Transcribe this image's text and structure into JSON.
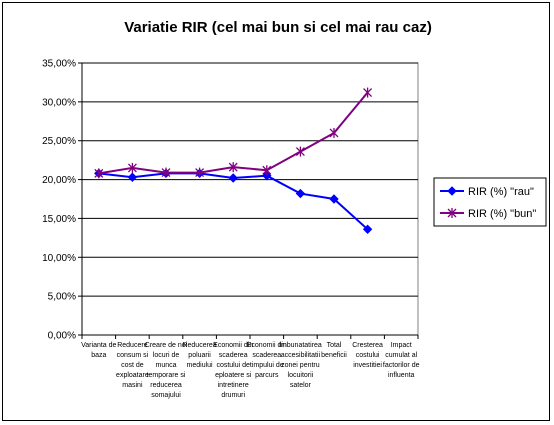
{
  "chart_data": {
    "type": "line",
    "title": "Variatie RIR (cel mai bun si cel mai rau caz)",
    "xlabel": "",
    "ylabel": "",
    "ylim": [
      0,
      35
    ],
    "ytick_labels": [
      "0,00%",
      "5,00%",
      "10,00%",
      "15,00%",
      "20,00%",
      "25,00%",
      "30,00%",
      "35,00%"
    ],
    "categories": [
      [
        "Varianta de",
        "baza"
      ],
      [
        "Reducere",
        "consum si",
        "cost de",
        "exploatare",
        "masini"
      ],
      [
        "Creare de noi",
        "locuri de",
        "munca",
        "temporare si",
        "reducerea",
        "somajului"
      ],
      [
        "Reducerea",
        "poluarii",
        "mediului"
      ],
      [
        "Economii din",
        "scaderea",
        "costului de",
        "eploatere si",
        "intretinere",
        "drumuri"
      ],
      [
        "Economii din",
        "scaderea",
        "timpului de",
        "parcurs"
      ],
      [
        "Imbunatatirea",
        "accesibilitatii",
        "zonei pentru",
        "locuitorii",
        "satelor"
      ],
      [
        "Total",
        "beneficii"
      ],
      [
        "Cresterea",
        "costului",
        "investitiei"
      ],
      [
        "Impact",
        "cumulat al",
        "factorilor de",
        "influenta"
      ]
    ],
    "series": [
      {
        "name": "RIR  (%) \"rau\"",
        "color": "#0000ff",
        "marker": "diamond",
        "values": [
          20.8,
          20.3,
          20.8,
          20.8,
          20.2,
          20.5,
          18.2,
          17.5,
          13.6,
          null
        ]
      },
      {
        "name": "RIR (%) \"bun\"",
        "color": "#800080",
        "marker": "star",
        "values": [
          20.8,
          21.5,
          20.9,
          20.9,
          21.6,
          21.2,
          23.6,
          26.0,
          31.2,
          null
        ]
      }
    ],
    "grid": true,
    "legend_position": "right"
  }
}
